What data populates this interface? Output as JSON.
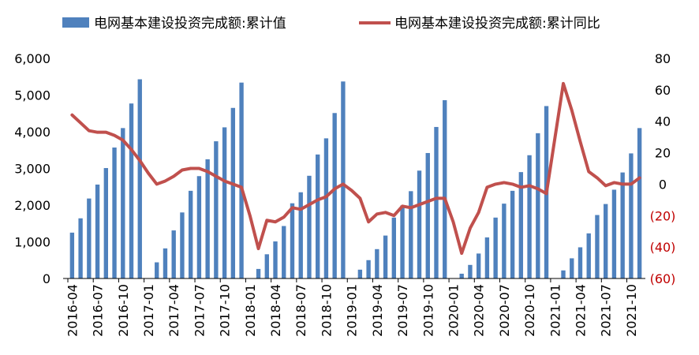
{
  "chart_data": {
    "type": "bar+line",
    "legend_position": "top",
    "colors": {
      "bars": "#4f81bd",
      "line": "#c0504d",
      "negative_tick": "#c00000",
      "axis": "#000000"
    },
    "legend": [
      {
        "label": "电网基本建设投资完成额:累计值",
        "kind": "bar"
      },
      {
        "label": "电网基本建设投资完成额:累计同比",
        "kind": "line"
      }
    ],
    "left_axis": {
      "ylim": [
        0,
        6000
      ],
      "ticks": [
        {
          "value": 0,
          "label": "0"
        },
        {
          "value": 1000,
          "label": "1,000"
        },
        {
          "value": 2000,
          "label": "2,000"
        },
        {
          "value": 3000,
          "label": "3,000"
        },
        {
          "value": 4000,
          "label": "4,000"
        },
        {
          "value": 5000,
          "label": "5,000"
        },
        {
          "value": 6000,
          "label": "6,000"
        }
      ]
    },
    "right_axis": {
      "ylim": [
        -60,
        80
      ],
      "ticks": [
        {
          "value": -60,
          "label": "(60)"
        },
        {
          "value": -40,
          "label": "(40)"
        },
        {
          "value": -20,
          "label": "(20)"
        },
        {
          "value": 0,
          "label": "0"
        },
        {
          "value": 20,
          "label": "20"
        },
        {
          "value": 40,
          "label": "40"
        },
        {
          "value": 60,
          "label": "60"
        },
        {
          "value": 80,
          "label": "80"
        }
      ]
    },
    "x_tick_labels": [
      "2016-04",
      "2016-07",
      "2016-10",
      "2017-01",
      "2017-04",
      "2017-07",
      "2017-10",
      "2018-01",
      "2018-04",
      "2018-07",
      "2018-10",
      "2019-01",
      "2019-04",
      "2019-07",
      "2019-10",
      "2020-01",
      "2020-04",
      "2020-07",
      "2020-10",
      "2021-01",
      "2021-04",
      "2021-07",
      "2021-10"
    ],
    "categories": [
      "2016-04",
      "2016-05",
      "2016-06",
      "2016-07",
      "2016-08",
      "2016-09",
      "2016-10",
      "2016-11",
      "2016-12",
      "2017-01",
      "2017-02",
      "2017-03",
      "2017-04",
      "2017-05",
      "2017-06",
      "2017-07",
      "2017-08",
      "2017-09",
      "2017-10",
      "2017-11",
      "2017-12",
      "2018-01",
      "2018-02",
      "2018-03",
      "2018-04",
      "2018-05",
      "2018-06",
      "2018-07",
      "2018-08",
      "2018-09",
      "2018-10",
      "2018-11",
      "2018-12",
      "2019-01",
      "2019-02",
      "2019-03",
      "2019-04",
      "2019-05",
      "2019-06",
      "2019-07",
      "2019-08",
      "2019-09",
      "2019-10",
      "2019-11",
      "2019-12",
      "2020-01",
      "2020-02",
      "2020-03",
      "2020-04",
      "2020-05",
      "2020-06",
      "2020-07",
      "2020-08",
      "2020-09",
      "2020-10",
      "2020-11",
      "2020-12",
      "2021-01",
      "2021-02",
      "2021-03",
      "2021-04",
      "2021-05",
      "2021-06",
      "2021-07",
      "2021-08",
      "2021-09",
      "2021-10",
      "2021-11"
    ],
    "series": [
      {
        "name": "电网基本建设投资完成额:累计值",
        "type": "bar",
        "axis": "left",
        "values": [
          1250,
          1640,
          2180,
          2560,
          3010,
          3570,
          4100,
          4770,
          5430,
          null,
          440,
          820,
          1310,
          1800,
          2390,
          2790,
          3250,
          3740,
          4120,
          4650,
          5340,
          null,
          260,
          660,
          1010,
          1430,
          2050,
          2350,
          2800,
          3380,
          3820,
          4510,
          5370,
          null,
          240,
          500,
          800,
          1170,
          1660,
          1990,
          2380,
          2940,
          3420,
          4130,
          4860,
          null,
          130,
          370,
          680,
          1120,
          1660,
          2040,
          2390,
          2900,
          3360,
          3960,
          4700,
          null,
          220,
          550,
          850,
          1230,
          1730,
          2030,
          2420,
          2890,
          3410,
          4100
        ]
      },
      {
        "name": "电网基本建设投资完成额:累计同比",
        "type": "line",
        "axis": "right",
        "values": [
          44,
          39,
          34,
          33,
          33,
          31,
          28,
          22,
          15,
          7,
          0,
          2,
          5,
          9,
          10,
          10,
          8,
          5,
          2,
          0,
          -2,
          -20,
          -41,
          -23,
          -24,
          -21,
          -15,
          -16,
          -13,
          -10,
          -8,
          -3,
          0,
          -4,
          -9,
          -24,
          -19,
          -18,
          -20,
          -14,
          -15,
          -13,
          -11,
          -9,
          -9,
          -24,
          -44,
          -28,
          -18,
          -2,
          0,
          1,
          0,
          -2,
          -1,
          -3,
          -6,
          null,
          64,
          47,
          27,
          8,
          4,
          -1,
          1,
          0,
          0,
          4
        ]
      }
    ]
  }
}
